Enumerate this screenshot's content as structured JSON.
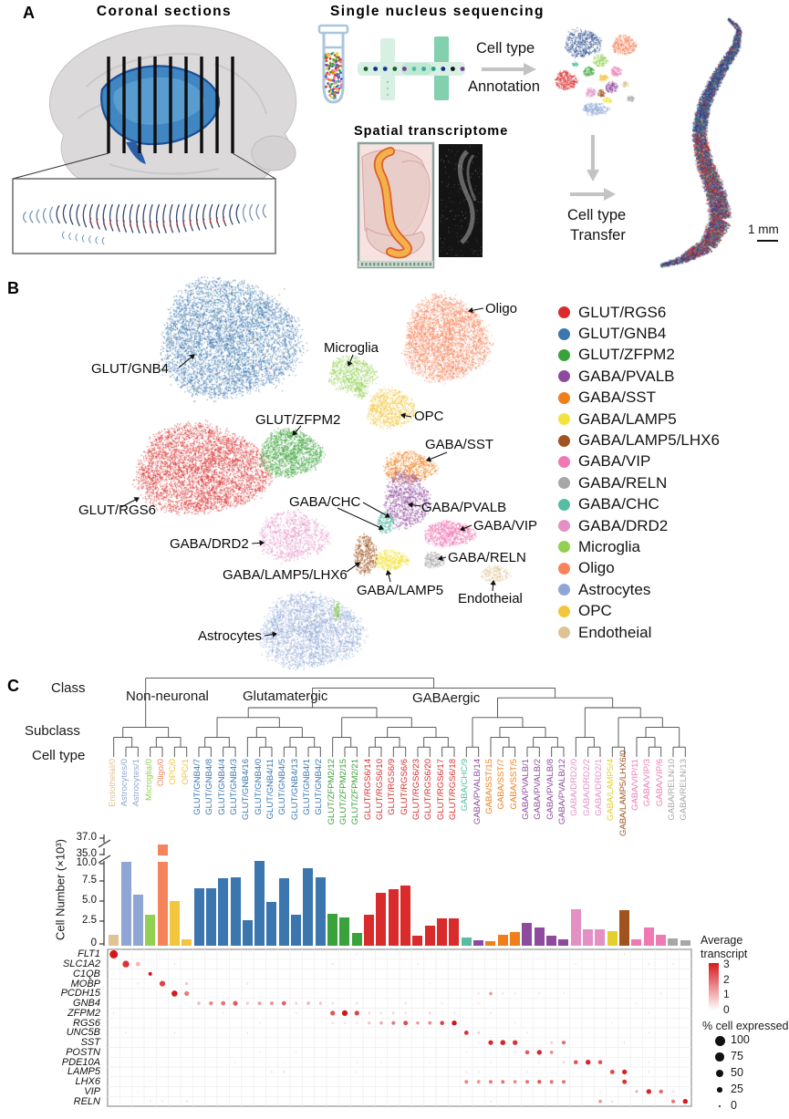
{
  "panelA": {
    "label": "A",
    "coronal_title": "Coronal sections",
    "snseq_title": "Single nucleus sequencing",
    "spatial_title": "Spatial transcriptome",
    "cell_type_annotation": [
      "Cell type",
      "Annotation"
    ],
    "cell_type_transfer": [
      "Cell type",
      "Transfer"
    ],
    "scale_label": "1 mm"
  },
  "panelB": {
    "label": "B",
    "legend": [
      {
        "label": "GLUT/RGS6",
        "color": "#d92b2b"
      },
      {
        "label": "GLUT/GNB4",
        "color": "#3c76af"
      },
      {
        "label": "GLUT/ZFPM2",
        "color": "#3aa23a"
      },
      {
        "label": "GABA/PVALB",
        "color": "#8e4a9e"
      },
      {
        "label": "GABA/SST",
        "color": "#ef7e1b"
      },
      {
        "label": "GABA/LAMP5",
        "color": "#f2e33f"
      },
      {
        "label": "GABA/LAMP5/LHX6",
        "color": "#a0521f"
      },
      {
        "label": "GABA/VIP",
        "color": "#ef7ab3"
      },
      {
        "label": "GABA/RELN",
        "color": "#a7a7a7"
      },
      {
        "label": "GABA/CHC",
        "color": "#56bda2"
      },
      {
        "label": "GABA/DRD2",
        "color": "#e391c4"
      },
      {
        "label": "Microglia",
        "color": "#92cf52"
      },
      {
        "label": "Oligo",
        "color": "#f5845c"
      },
      {
        "label": "Astrocytes",
        "color": "#8fa6d4"
      },
      {
        "label": "OPC",
        "color": "#f2c53d"
      },
      {
        "label": "Endotheial",
        "color": "#dfc392"
      }
    ],
    "cluster_labels": [
      {
        "label": "GLUT/GNB4"
      },
      {
        "label": "Oligo"
      },
      {
        "label": "Microglia"
      },
      {
        "label": "OPC"
      },
      {
        "label": "GLUT/ZFPM2"
      },
      {
        "label": "GABA/SST"
      },
      {
        "label": "GLUT/RGS6"
      },
      {
        "label": "GABA/CHC"
      },
      {
        "label": "GABA/PVALB"
      },
      {
        "label": "GABA/VIP"
      },
      {
        "label": "GABA/DRD2"
      },
      {
        "label": "GABA/RELN"
      },
      {
        "label": "GABA/LAMP5/LHX6"
      },
      {
        "label": "GABA/LAMP5"
      },
      {
        "label": "Endotheial"
      },
      {
        "label": "Astrocytes"
      }
    ]
  },
  "panelC": {
    "label": "C",
    "row_labels": {
      "class": "Class",
      "subclass": "Subclass",
      "celltype": "Cell type"
    },
    "classes": [
      "Non-neuronal",
      "Glutamatergic",
      "GABAergic"
    ],
    "bar_ylabel": "Cell Number (×10³)"
  },
  "chart_data": [
    {
      "type": "bar",
      "title": "Cell Number (×10³)",
      "ylabel": "Cell Number (×10³)",
      "broken_axis_ticks": [
        "37.0",
        "35.0",
        "10.0",
        "7.5",
        "5.0",
        "2.5",
        "0"
      ],
      "axis_note": "y axis broken between 10 and 35 (×10³ cells)",
      "categories": [
        "Endotheial/0",
        "Astrocytes/0",
        "Astrocytes/1",
        "Microglia/0",
        "Oligo/0",
        "OPC/0",
        "OPC/1",
        "GLUT/GNB4/7",
        "GLUT/GNB4/8",
        "GLUT/GNB4/4",
        "GLUT/GNB4/3",
        "GLUT/GNB4/16",
        "GLUT/GNB4/0",
        "GLUT/GNB4/11",
        "GLUT/GNB4/5",
        "GLUT/GNB4/13",
        "GLUT/GNB4/1",
        "GLUT/GNB4/2",
        "GLUT/ZFPM2/12",
        "GLUT/ZFPM2/15",
        "GLUT/ZFPM2/21",
        "GLUT/RGS6/14",
        "GLUT/RGS6/10",
        "GLUT/RGS6/9",
        "GLUT/RGS6/6",
        "GLUT/RGS6/23",
        "GLUT/RGS6/20",
        "GLUT/RGS6/17",
        "GLUT/RGS6/18",
        "GABA/CHC/9",
        "GABA/PVALB/14",
        "GABA/SST/15",
        "GABA/SST/7",
        "GABA/SST/5",
        "GABA/PVALB/1",
        "GABA/PVALB/2",
        "GABA/PVALB/8",
        "GABA/PVALB/12",
        "GABA/DRD2/0",
        "GABA/DRD2/2",
        "GABA/DRD2/1",
        "GABA/LAMP5/4",
        "GABA/LAMP5/LHX6/0",
        "GABA/VIP/11",
        "GABA/VIP/3",
        "GABA/VIP/6",
        "GABA/RELN/10",
        "GABA/RELN/13"
      ],
      "values": [
        1.3,
        10.2,
        6.2,
        3.8,
        36.2,
        5.4,
        0.8,
        7.0,
        7.0,
        8.2,
        8.3,
        3.1,
        10.3,
        5.3,
        8.2,
        3.8,
        9.4,
        8.3,
        3.9,
        3.5,
        1.6,
        3.8,
        6.4,
        6.9,
        7.3,
        1.2,
        2.5,
        3.3,
        3.3,
        1.0,
        0.7,
        0.6,
        1.3,
        1.7,
        2.8,
        2.2,
        1.2,
        0.8,
        4.4,
        2.0,
        2.0,
        1.8,
        4.3,
        0.8,
        2.2,
        1.3,
        0.9,
        0.7
      ],
      "colors": [
        "#dfc392",
        "#8fa6d4",
        "#8fa6d4",
        "#92cf52",
        "#f5845c",
        "#f2c53d",
        "#f2c53d",
        "#3c76af",
        "#3c76af",
        "#3c76af",
        "#3c76af",
        "#3c76af",
        "#3c76af",
        "#3c76af",
        "#3c76af",
        "#3c76af",
        "#3c76af",
        "#3c76af",
        "#3aa23a",
        "#3aa23a",
        "#3aa23a",
        "#d92b2b",
        "#d92b2b",
        "#d92b2b",
        "#d92b2b",
        "#d92b2b",
        "#d92b2b",
        "#d92b2b",
        "#d92b2b",
        "#56bda2",
        "#8e4a9e",
        "#ef7e1b",
        "#ef7e1b",
        "#ef7e1b",
        "#8e4a9e",
        "#8e4a9e",
        "#8e4a9e",
        "#8e4a9e",
        "#e391c4",
        "#e391c4",
        "#e391c4",
        "#e3d02c",
        "#a0521f",
        "#ef7ab3",
        "#ef7ab3",
        "#ef7ab3",
        "#a7a7a7",
        "#a7a7a7"
      ]
    },
    {
      "type": "dotplot",
      "genes": [
        "FLT1",
        "SLC1A2",
        "C1QB",
        "MOBP",
        "PCDH15",
        "GNB4",
        "ZFPM2",
        "RGS6",
        "UNC5B",
        "SST",
        "POSTN",
        "PDE10A",
        "LAMP5",
        "LHX6",
        "VIP",
        "RELN"
      ],
      "columns_note": "columns identical to bar chart categories",
      "color_legend": {
        "title": "Average transcript",
        "ticks": [
          "3",
          "2",
          "1",
          "0"
        ],
        "max_color": "#d7191c"
      },
      "size_legend": {
        "title": "% cell expressed",
        "sizes": [
          "100",
          "75",
          "50",
          "25",
          "0"
        ]
      },
      "dots": [
        [
          0,
          0,
          90,
          3.0
        ],
        [
          0,
          20,
          6,
          0.3
        ],
        [
          0,
          42,
          8,
          0.35
        ],
        [
          1,
          1,
          70,
          2.6
        ],
        [
          1,
          2,
          40,
          0.9
        ],
        [
          1,
          5,
          8,
          0.3
        ],
        [
          1,
          18,
          10,
          0.4
        ],
        [
          1,
          25,
          8,
          0.3
        ],
        [
          1,
          38,
          6,
          0.3
        ],
        [
          1,
          44,
          8,
          0.35
        ],
        [
          1,
          46,
          8,
          0.3
        ],
        [
          2,
          3,
          28,
          3.0
        ],
        [
          2,
          0,
          5,
          0.2
        ],
        [
          3,
          4,
          55,
          2.4
        ],
        [
          3,
          2,
          8,
          0.3
        ],
        [
          3,
          6,
          22,
          0.7
        ],
        [
          3,
          11,
          10,
          0.35
        ],
        [
          3,
          26,
          6,
          0.25
        ],
        [
          4,
          5,
          60,
          2.9
        ],
        [
          4,
          6,
          42,
          1.7
        ],
        [
          4,
          30,
          10,
          0.4
        ],
        [
          4,
          31,
          22,
          1.3
        ],
        [
          4,
          32,
          10,
          0.4
        ],
        [
          4,
          33,
          8,
          0.35
        ],
        [
          4,
          35,
          8,
          0.3
        ],
        [
          4,
          37,
          8,
          0.3
        ],
        [
          4,
          45,
          8,
          0.35
        ],
        [
          5,
          7,
          22,
          0.9
        ],
        [
          5,
          8,
          32,
          1.5
        ],
        [
          5,
          9,
          38,
          1.8
        ],
        [
          5,
          10,
          42,
          2.1
        ],
        [
          5,
          11,
          18,
          0.7
        ],
        [
          5,
          12,
          28,
          1.2
        ],
        [
          5,
          13,
          28,
          1.4
        ],
        [
          5,
          14,
          38,
          2.0
        ],
        [
          5,
          15,
          14,
          0.6
        ],
        [
          5,
          16,
          22,
          1.0
        ],
        [
          5,
          17,
          18,
          0.8
        ],
        [
          5,
          18,
          10,
          0.45
        ],
        [
          5,
          20,
          12,
          0.5
        ],
        [
          5,
          24,
          10,
          0.4
        ],
        [
          5,
          27,
          8,
          0.35
        ],
        [
          5,
          30,
          8,
          0.35
        ],
        [
          5,
          43,
          6,
          0.25
        ],
        [
          6,
          18,
          42,
          2.2
        ],
        [
          6,
          19,
          55,
          3.0
        ],
        [
          6,
          20,
          42,
          2.4
        ],
        [
          6,
          0,
          8,
          0.35
        ],
        [
          6,
          9,
          6,
          0.3
        ],
        [
          6,
          15,
          8,
          0.35
        ],
        [
          6,
          21,
          12,
          0.55
        ],
        [
          6,
          22,
          10,
          0.45
        ],
        [
          6,
          23,
          12,
          0.6
        ],
        [
          6,
          24,
          10,
          0.45
        ],
        [
          6,
          26,
          12,
          0.55
        ],
        [
          6,
          28,
          8,
          0.4
        ],
        [
          6,
          31,
          6,
          0.3
        ],
        [
          6,
          44,
          6,
          0.25
        ],
        [
          7,
          21,
          18,
          0.8
        ],
        [
          7,
          22,
          22,
          1.1
        ],
        [
          7,
          23,
          30,
          1.7
        ],
        [
          7,
          24,
          40,
          2.3
        ],
        [
          7,
          25,
          22,
          1.3
        ],
        [
          7,
          26,
          26,
          1.5
        ],
        [
          7,
          27,
          36,
          2.4
        ],
        [
          7,
          28,
          46,
          3.0
        ],
        [
          7,
          18,
          10,
          0.45
        ],
        [
          7,
          19,
          8,
          0.4
        ],
        [
          7,
          20,
          8,
          0.4
        ],
        [
          7,
          12,
          6,
          0.3
        ],
        [
          7,
          33,
          6,
          0.3
        ],
        [
          7,
          41,
          6,
          0.25
        ],
        [
          8,
          29,
          38,
          2.6
        ],
        [
          8,
          1,
          8,
          0.35
        ],
        [
          8,
          5,
          8,
          0.35
        ],
        [
          8,
          11,
          6,
          0.3
        ],
        [
          8,
          30,
          12,
          0.7
        ],
        [
          8,
          34,
          8,
          0.35
        ],
        [
          8,
          44,
          6,
          0.25
        ],
        [
          9,
          31,
          42,
          2.8
        ],
        [
          9,
          32,
          48,
          2.8
        ],
        [
          9,
          33,
          46,
          2.6
        ],
        [
          9,
          36,
          12,
          0.7
        ],
        [
          9,
          37,
          30,
          1.9
        ],
        [
          9,
          30,
          6,
          0.3
        ],
        [
          9,
          42,
          8,
          0.4
        ],
        [
          10,
          34,
          36,
          2.1
        ],
        [
          10,
          35,
          46,
          2.8
        ],
        [
          10,
          36,
          26,
          1.5
        ],
        [
          10,
          12,
          8,
          0.3
        ],
        [
          10,
          15,
          8,
          0.3
        ],
        [
          10,
          29,
          6,
          0.3
        ],
        [
          10,
          33,
          8,
          0.35
        ],
        [
          11,
          38,
          36,
          2.2
        ],
        [
          11,
          39,
          46,
          2.8
        ],
        [
          11,
          40,
          34,
          2.2
        ],
        [
          11,
          37,
          12,
          0.6
        ],
        [
          11,
          10,
          6,
          0.25
        ],
        [
          11,
          14,
          6,
          0.25
        ],
        [
          11,
          20,
          8,
          0.3
        ],
        [
          11,
          22,
          6,
          0.25
        ],
        [
          11,
          26,
          8,
          0.3
        ],
        [
          11,
          31,
          8,
          0.3
        ],
        [
          11,
          35,
          8,
          0.3
        ],
        [
          11,
          44,
          8,
          0.3
        ],
        [
          12,
          41,
          38,
          2.4
        ],
        [
          12,
          42,
          46,
          2.8
        ],
        [
          12,
          13,
          8,
          0.35
        ],
        [
          12,
          14,
          10,
          0.4
        ],
        [
          12,
          20,
          6,
          0.3
        ],
        [
          12,
          29,
          8,
          0.35
        ],
        [
          12,
          30,
          8,
          0.35
        ],
        [
          12,
          34,
          6,
          0.3
        ],
        [
          12,
          44,
          8,
          0.35
        ],
        [
          13,
          29,
          28,
          1.6
        ],
        [
          13,
          30,
          24,
          1.4
        ],
        [
          13,
          31,
          28,
          1.7
        ],
        [
          13,
          32,
          28,
          1.8
        ],
        [
          13,
          33,
          24,
          1.5
        ],
        [
          13,
          34,
          28,
          1.8
        ],
        [
          13,
          35,
          32,
          2.1
        ],
        [
          13,
          36,
          28,
          1.8
        ],
        [
          13,
          37,
          28,
          1.8
        ],
        [
          13,
          42,
          40,
          2.6
        ],
        [
          13,
          3,
          5,
          0.2
        ],
        [
          14,
          43,
          18,
          1.0
        ],
        [
          14,
          44,
          46,
          2.8
        ],
        [
          14,
          45,
          32,
          1.9
        ],
        [
          14,
          46,
          10,
          0.5
        ],
        [
          14,
          40,
          6,
          0.3
        ],
        [
          14,
          2,
          5,
          0.2
        ],
        [
          15,
          40,
          22,
          1.4
        ],
        [
          15,
          41,
          10,
          0.5
        ],
        [
          15,
          46,
          28,
          1.8
        ],
        [
          15,
          47,
          46,
          2.9
        ],
        [
          15,
          4,
          6,
          0.3
        ],
        [
          15,
          6,
          8,
          0.4
        ],
        [
          15,
          3,
          6,
          0.3
        ],
        [
          15,
          31,
          6,
          0.3
        ]
      ]
    }
  ]
}
